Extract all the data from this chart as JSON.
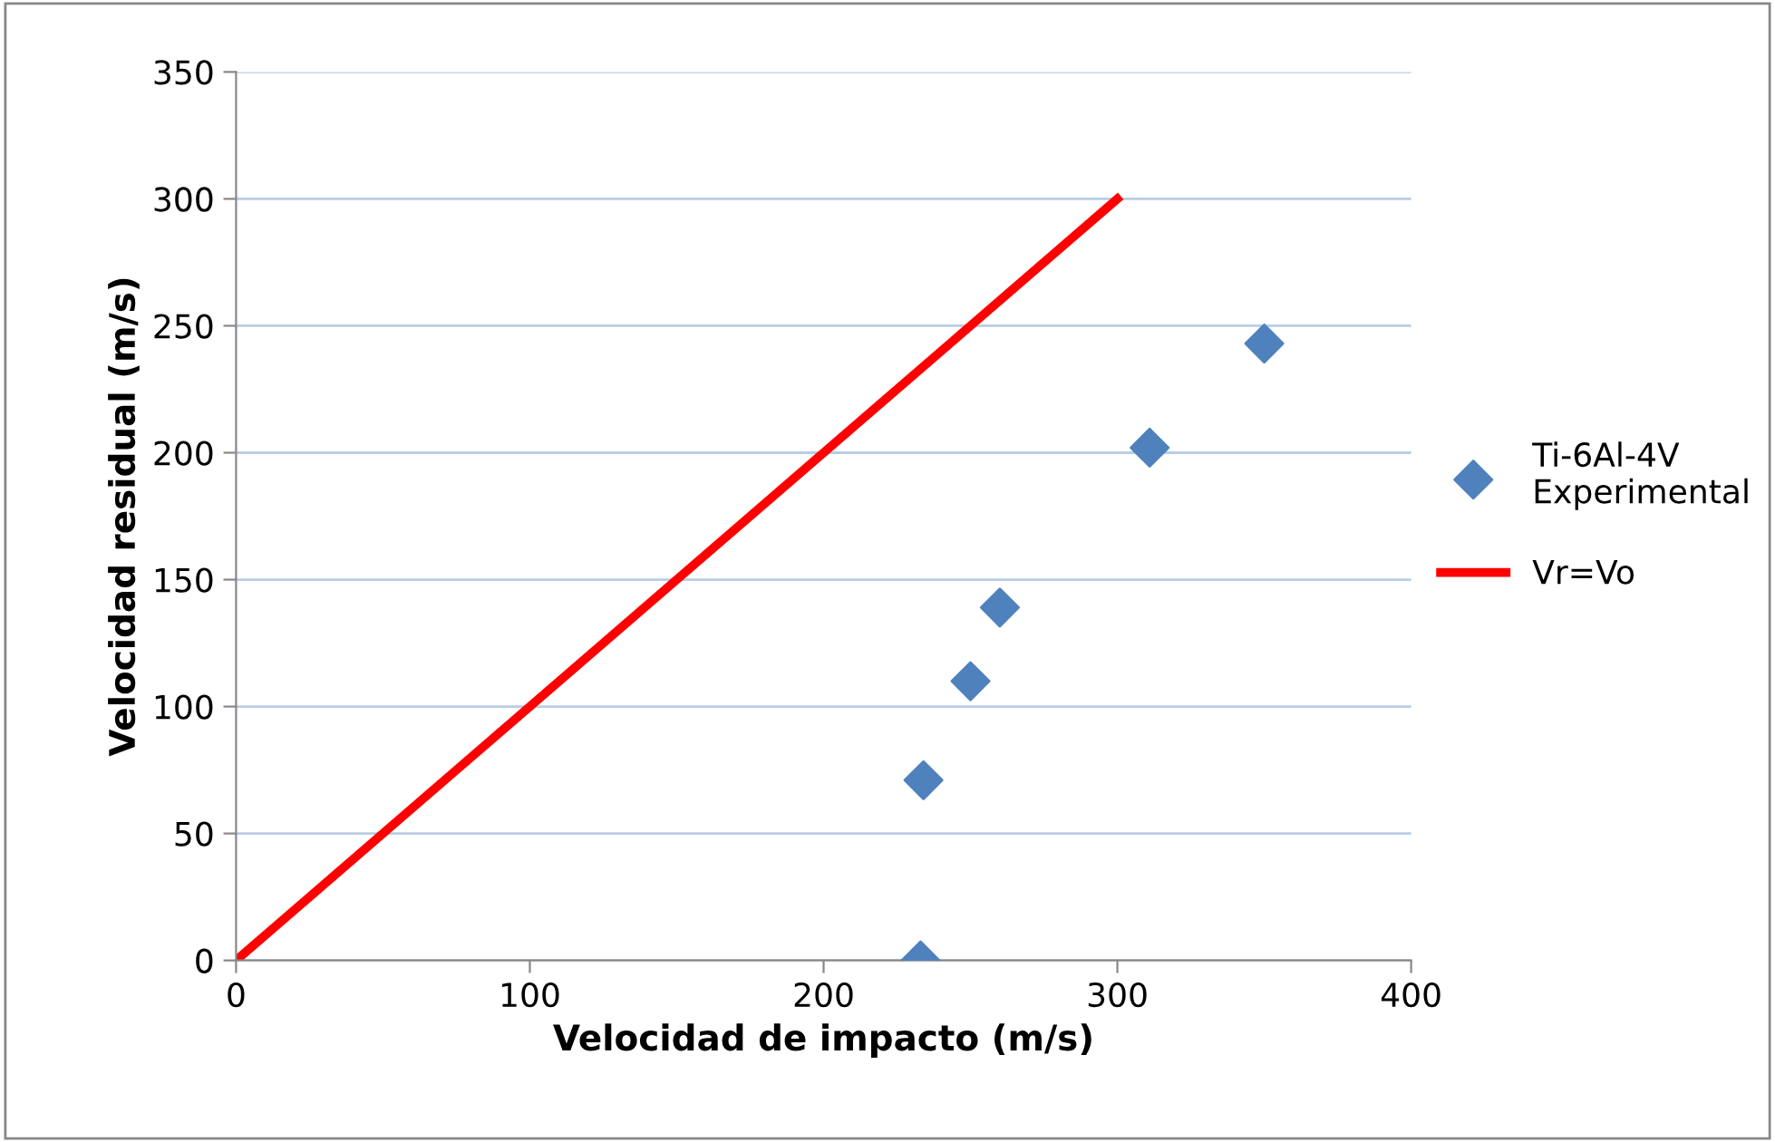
{
  "chart_data": {
    "type": "scatter",
    "xlabel": "Velocidad de impacto (m/s)",
    "ylabel": "Velocidad residual (m/s)",
    "xlim": [
      0,
      400
    ],
    "xticks": [
      0,
      100,
      200,
      300,
      400
    ],
    "ylim": [
      0,
      350
    ],
    "yticks": [
      0,
      50,
      100,
      150,
      200,
      250,
      300,
      350
    ],
    "grid": "y",
    "legend": "right",
    "series": [
      {
        "name": "Ti-6Al-4V\nExperimental",
        "marker": "diamond",
        "color": "#4f81bd",
        "x": [
          233,
          234,
          250,
          260,
          311,
          350
        ],
        "values": [
          0,
          71,
          110,
          139,
          202,
          243
        ]
      },
      {
        "name": "Vr=Vo",
        "type": "line",
        "marker": "none",
        "color": "#ff0000",
        "x": [
          0,
          300
        ],
        "values": [
          0,
          300
        ]
      }
    ]
  }
}
